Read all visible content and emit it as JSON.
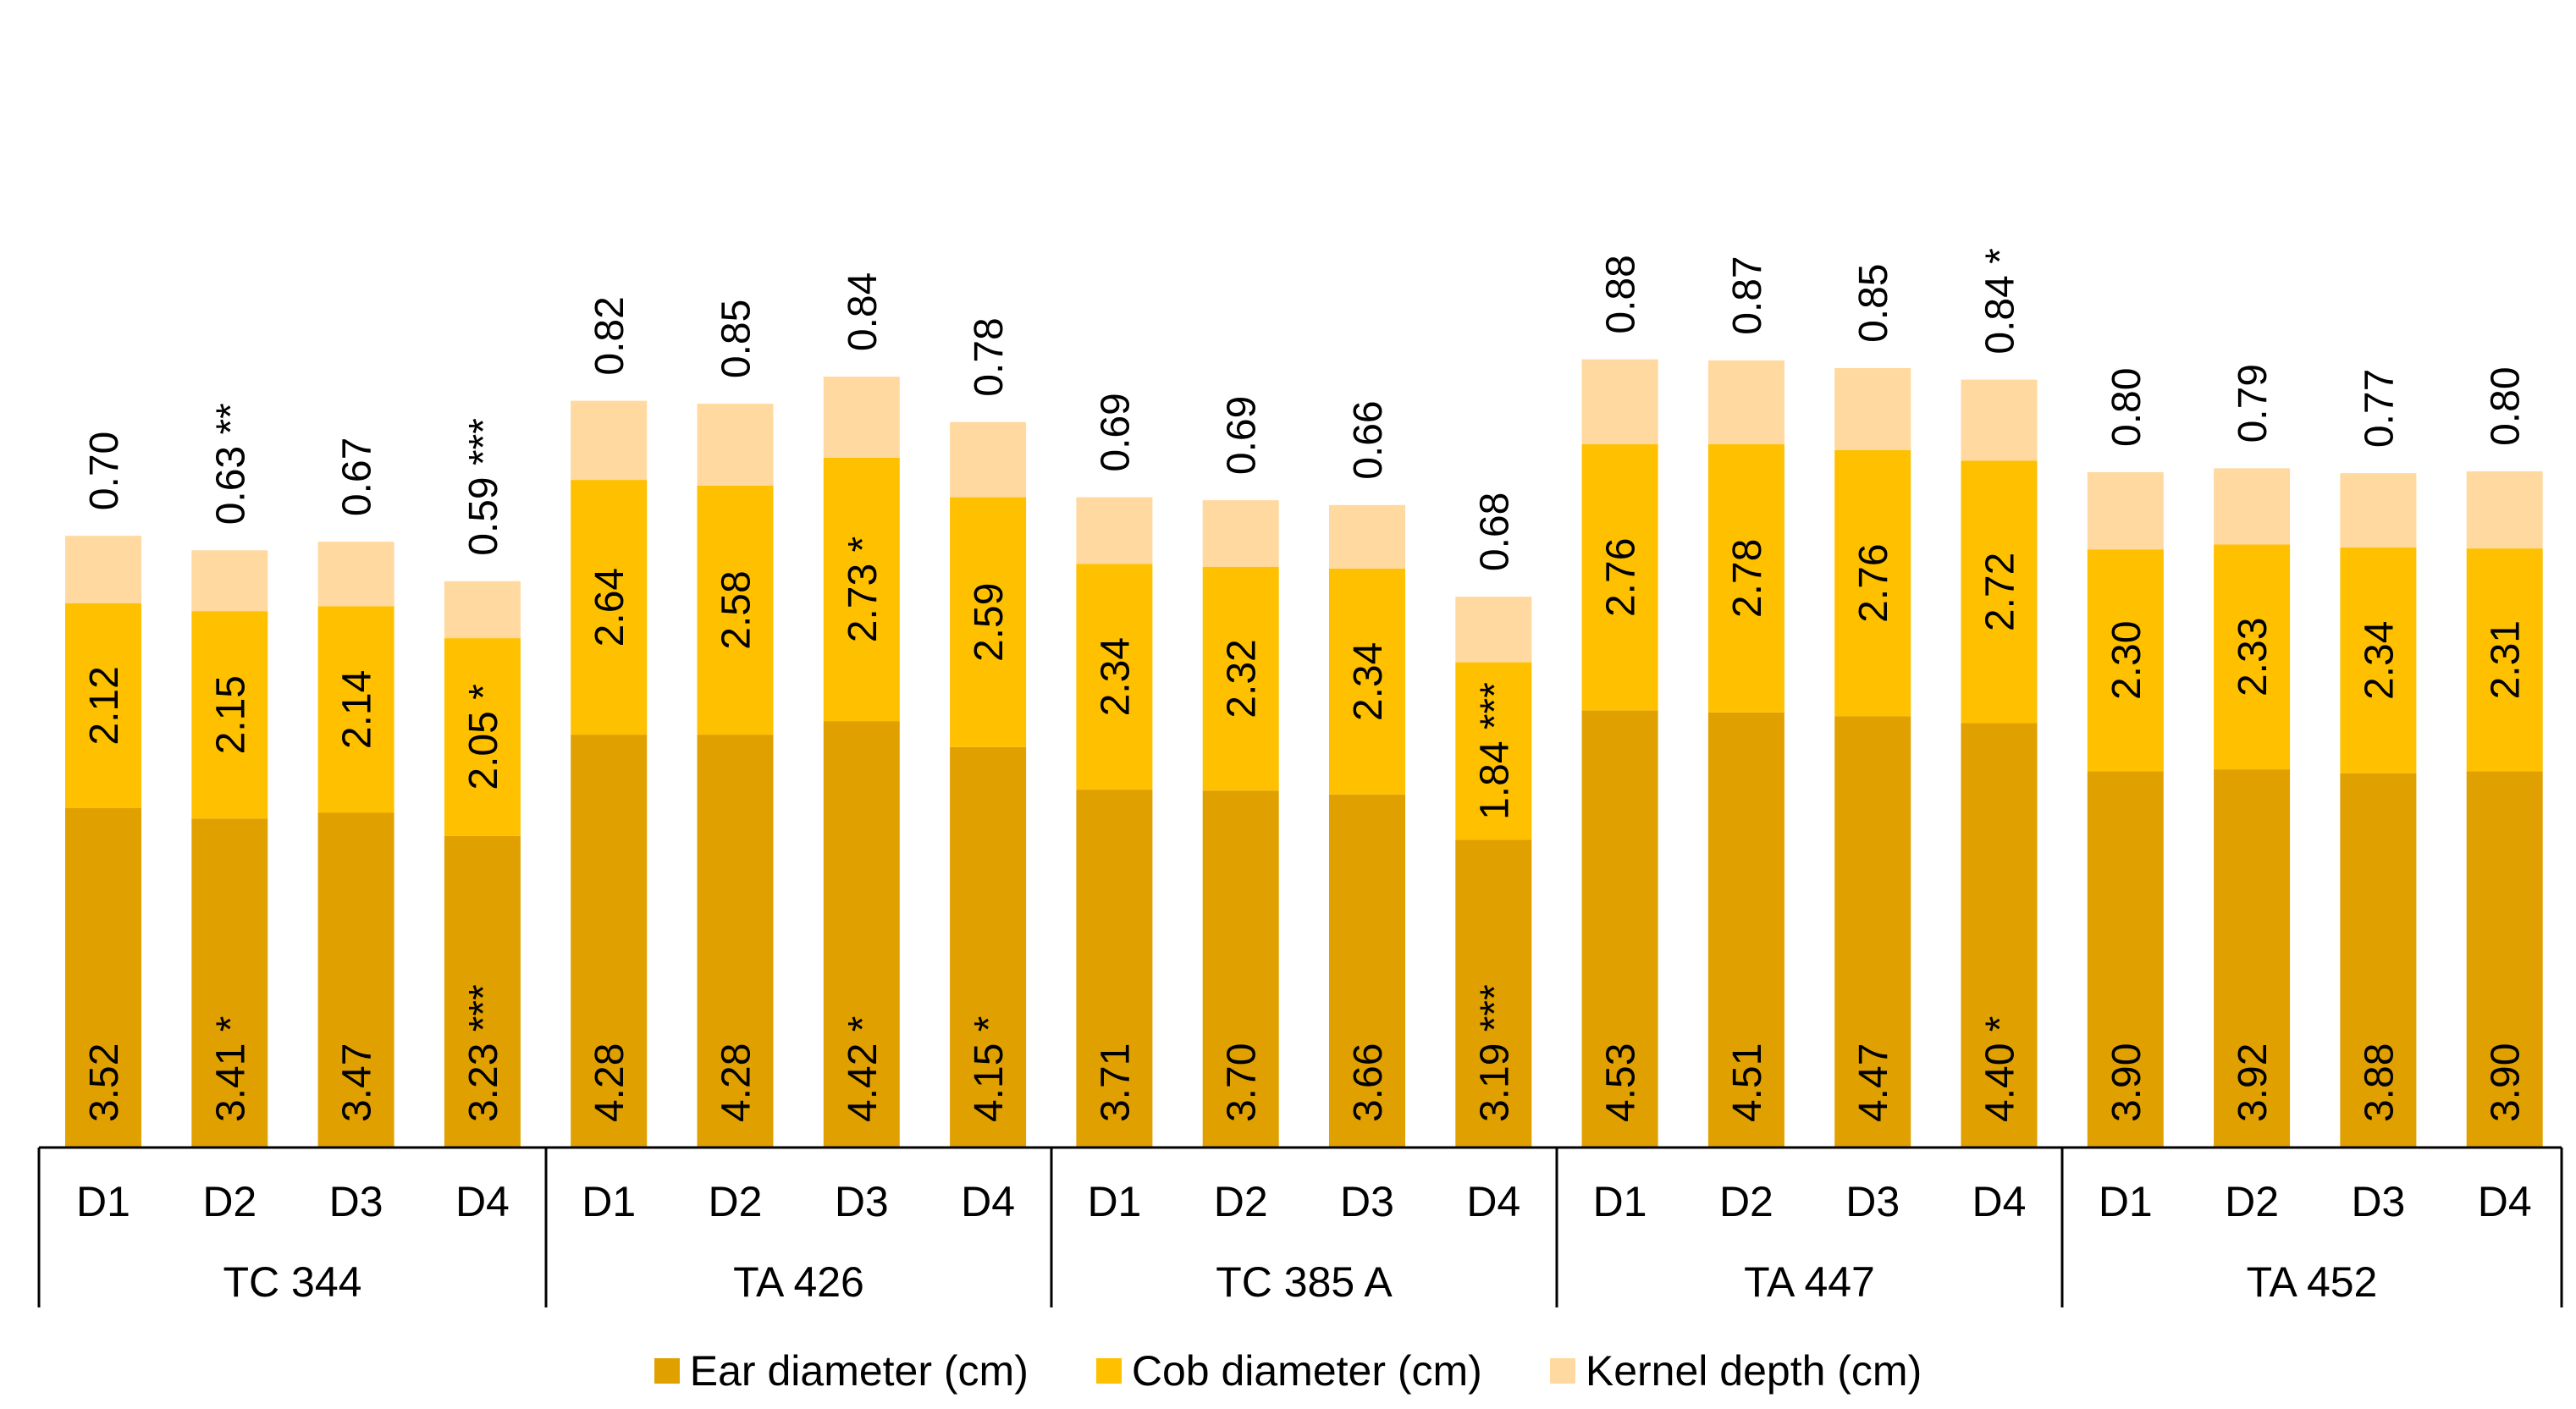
{
  "chart_data": {
    "type": "bar",
    "stacked": true,
    "title": "",
    "xlabel": "",
    "ylabel": "",
    "groups": [
      {
        "name": "TC 344",
        "categories": [
          "D1",
          "D2",
          "D3",
          "D4"
        ]
      },
      {
        "name": "TA 426",
        "categories": [
          "D1",
          "D2",
          "D3",
          "D4"
        ]
      },
      {
        "name": "TC 385 A",
        "categories": [
          "D1",
          "D2",
          "D3",
          "D4"
        ]
      },
      {
        "name": "TA 447",
        "categories": [
          "D1",
          "D2",
          "D3",
          "D4"
        ]
      },
      {
        "name": "TA 452",
        "categories": [
          "D1",
          "D2",
          "D3",
          "D4"
        ]
      }
    ],
    "series": [
      {
        "name": "Ear diameter (cm)",
        "color": "#E0A000",
        "values": [
          3.52,
          3.41,
          3.47,
          3.23,
          4.28,
          4.28,
          4.42,
          4.15,
          3.71,
          3.7,
          3.66,
          3.19,
          4.53,
          4.51,
          4.47,
          4.4,
          3.9,
          3.92,
          3.88,
          3.9
        ],
        "labels": [
          "3.52",
          "3.41 *",
          "3.47",
          "3.23 ***",
          "4.28",
          "4.28",
          "4.42 *",
          "4.15 *",
          "3.71",
          "3.70",
          "3.66",
          "3.19 ***",
          "4.53",
          "4.51",
          "4.47",
          "4.40 *",
          "3.90",
          "3.92",
          "3.88",
          "3.90"
        ]
      },
      {
        "name": "Cob diameter (cm)",
        "color": "#FFC000",
        "values": [
          2.12,
          2.15,
          2.14,
          2.05,
          2.64,
          2.58,
          2.73,
          2.59,
          2.34,
          2.32,
          2.34,
          1.84,
          2.76,
          2.78,
          2.76,
          2.72,
          2.3,
          2.33,
          2.34,
          2.31
        ],
        "labels": [
          "2.12",
          "2.15",
          "2.14",
          "2.05 *",
          "2.64",
          "2.58",
          "2.73 *",
          "2.59",
          "2.34",
          "2.32",
          "2.34",
          "1.84 ***",
          "2.76",
          "2.78",
          "2.76",
          "2.72",
          "2.30",
          "2.33",
          "2.34",
          "2.31"
        ]
      },
      {
        "name": "Kernel depth (cm)",
        "color": "#FFD9A0",
        "values": [
          0.7,
          0.63,
          0.67,
          0.59,
          0.82,
          0.85,
          0.84,
          0.78,
          0.69,
          0.69,
          0.66,
          0.68,
          0.88,
          0.87,
          0.85,
          0.84,
          0.8,
          0.79,
          0.77,
          0.8
        ],
        "labels": [
          "0.70",
          "0.63 **",
          "0.67",
          "0.59 ***",
          "0.82",
          "0.85",
          "0.84",
          "0.78",
          "0.69",
          "0.69",
          "0.66",
          "0.68",
          "0.88",
          "0.87",
          "0.85",
          "0.84 *",
          "0.80",
          "0.79",
          "0.77",
          "0.80"
        ]
      }
    ],
    "legend_position": "bottom",
    "grid": false
  }
}
